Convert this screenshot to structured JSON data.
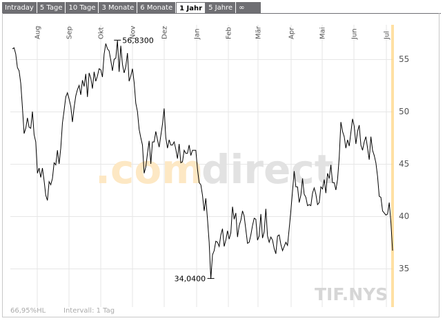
{
  "tabs": [
    {
      "label": "Intraday",
      "active": false
    },
    {
      "label": "5 Tage",
      "active": false
    },
    {
      "label": "10 Tage",
      "active": false
    },
    {
      "label": "3 Monate",
      "active": false
    },
    {
      "label": "6 Monate",
      "active": false
    },
    {
      "label": "1 Jahr",
      "active": true
    },
    {
      "label": "5 Jahre",
      "active": false
    },
    {
      "label": "∞",
      "active": false
    }
  ],
  "watermark": {
    "part1": ".com",
    "part2": "direct"
  },
  "symbol": "TIF.NYS",
  "footer": {
    "hl": "66,95%HL",
    "interval": "Intervall: 1 Tag"
  },
  "colors": {
    "line": "#000000",
    "grid": "#e6e6e6",
    "accent": "#ffcc66",
    "watermark_orange": "#fde8c4",
    "watermark_gray": "#e2e2e2"
  },
  "chart_data": {
    "type": "line",
    "months": [
      "Aug",
      "Sep",
      "Okt",
      "Nov",
      "Dez",
      "Jan",
      "Feb",
      "Mär",
      "Apr",
      "Mai",
      "Jun",
      "Jul"
    ],
    "y_ticks": [
      35,
      40,
      45,
      50,
      55
    ],
    "ylim": [
      31.3,
      58.3
    ],
    "max_label": "56,8300",
    "min_label": "34,0400",
    "max_value": 56.83,
    "min_value": 34.04,
    "series": [
      {
        "values": [
          56.0,
          56.1,
          55.5,
          54.2,
          53.9,
          52.7,
          50.4,
          47.9,
          48.4,
          49.4,
          48.5,
          48.4,
          50.0,
          47.8,
          47.1,
          44.1,
          44.6,
          43.7,
          44.6,
          43.4,
          42.0,
          41.5,
          43.3,
          43.0,
          43.6,
          45.1,
          44.9,
          46.3,
          45.0,
          46.5,
          48.9,
          50.1,
          51.4,
          51.8,
          51.2,
          50.5,
          49.0,
          50.4,
          51.5,
          52.1,
          52.5,
          51.6,
          53.0,
          52.4,
          53.6,
          51.4,
          53.7,
          53.2,
          52.2,
          53.8,
          52.9,
          53.4,
          54.1,
          54.0,
          53.3,
          55.5,
          56.5,
          56.0,
          55.8,
          54.9,
          53.9,
          55.0,
          55.1,
          56.8,
          53.8,
          56.3,
          54.5,
          53.7,
          54.3,
          55.6,
          52.9,
          53.4,
          54.1,
          52.8,
          50.8,
          50.0,
          48.3,
          47.5,
          46.8,
          44.1,
          44.7,
          46.0,
          47.2,
          45.0,
          47.1,
          47.1,
          48.1,
          47.3,
          46.6,
          47.7,
          48.8,
          50.3,
          47.5,
          46.5,
          47.3,
          46.8,
          46.8,
          47.1,
          46.4,
          45.5,
          46.9,
          45.1,
          45.2,
          46.3,
          46.0,
          46.0,
          46.8,
          45.8,
          46.3,
          46.3,
          46.3,
          44.5,
          43.2,
          43.0,
          42.0,
          40.5,
          41.7,
          39.7,
          37.5,
          34.0,
          36.3,
          36.7,
          37.6,
          37.5,
          37.1,
          38.2,
          38.8,
          37.1,
          37.7,
          38.6,
          37.8,
          38.4,
          40.9,
          39.7,
          40.3,
          38.0,
          39.1,
          39.6,
          40.5,
          40.0,
          38.7,
          37.4,
          37.5,
          38.2,
          39.1,
          39.8,
          39.7,
          37.7,
          38.1,
          40.2,
          37.9,
          38.5,
          40.7,
          38.1,
          37.5,
          38.0,
          37.7,
          36.9,
          36.4,
          38.1,
          38.2,
          37.3,
          36.7,
          37.1,
          37.5,
          37.2,
          38.8,
          40.5,
          42.4,
          44.3,
          42.8,
          42.8,
          41.3,
          42.0,
          43.6,
          42.1,
          41.8,
          41.0,
          41.1,
          41.0,
          42.2,
          42.7,
          42.1,
          41.1,
          41.3,
          42.8,
          42.6,
          43.5,
          42.2,
          44.1,
          43.6,
          44.9,
          43.2,
          43.2,
          42.5,
          43.5,
          45.6,
          49.0,
          48.1,
          47.6,
          46.5,
          47.3,
          46.7,
          48.0,
          49.3,
          48.6,
          46.9,
          48.1,
          48.7,
          46.8,
          46.3,
          47.1,
          47.6,
          46.5,
          45.4,
          47.6,
          46.3,
          45.8,
          45.1,
          43.8,
          41.9,
          41.8,
          40.5,
          40.3,
          40.1,
          40.2,
          41.3,
          39.4,
          36.7
        ]
      }
    ]
  }
}
